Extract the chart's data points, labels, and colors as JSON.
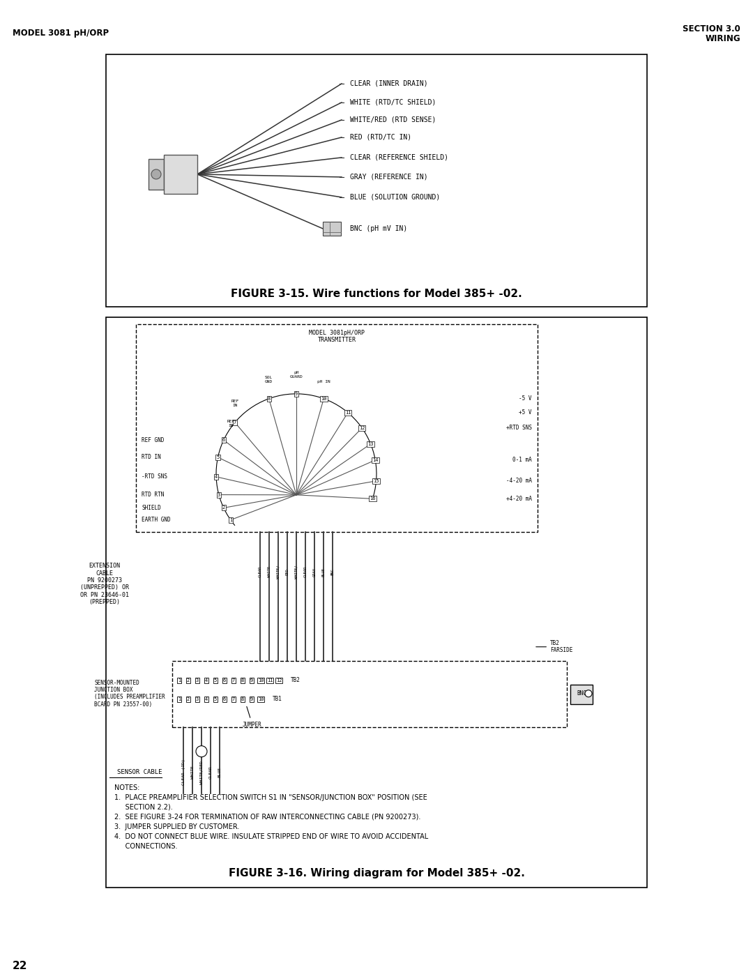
{
  "page_width": 10.8,
  "page_height": 13.97,
  "bg_color": "#ffffff",
  "header_left": "MODEL 3081 pH/ORP",
  "header_right_line1": "SECTION 3.0",
  "header_right_line2": "WIRING",
  "footer_page": "22",
  "fig1_title": "FIGURE 3-15. Wire functions for Model 385+ -02.",
  "fig1_wires": [
    "CLEAR (INNER DRAIN)",
    "WHITE (RTD/TC SHIELD)",
    "WHITE/RED (RTD SENSE)",
    "RED (RTD/TC IN)",
    "CLEAR (REFERENCE SHIELD)",
    "GRAY (REFERENCE IN)",
    "BLUE (SOLUTION GROUND)",
    "BNC (pH mV IN)"
  ],
  "fig2_title": "FIGURE 3-16. Wiring diagram for Model 385+ -02.",
  "notes_lines": [
    "NOTES:",
    "1.  PLACE PREAMPLIFIER SELECTION SWITCH S1 IN \"SENSOR/JUNCTION BOX\" POSITION (SEE",
    "     SECTION 2.2).",
    "2.  SEE FIGURE 3-24 FOR TERMINATION OF RAW INTERCONNECTING CABLE (PN 9200273).",
    "3.  JUMPER SUPPLIED BY CUSTOMER.",
    "4.  DO NOT CONNECT BLUE WIRE. INSULATE STRIPPED END OF WIRE TO AVOID ACCIDENTAL",
    "     CONNECTIONS."
  ]
}
